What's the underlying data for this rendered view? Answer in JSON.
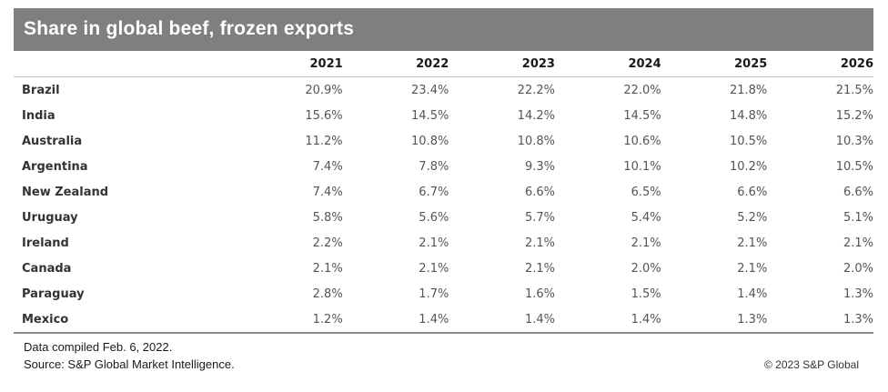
{
  "chart_data": {
    "type": "table",
    "title": "Share in global beef, frozen exports",
    "columns": [
      "2021",
      "2022",
      "2023",
      "2024",
      "2025",
      "2026"
    ],
    "rows": [
      {
        "label": "Brazil",
        "values": [
          "20.9%",
          "23.4%",
          "22.2%",
          "22.0%",
          "21.8%",
          "21.5%"
        ]
      },
      {
        "label": "India",
        "values": [
          "15.6%",
          "14.5%",
          "14.2%",
          "14.5%",
          "14.8%",
          "15.2%"
        ]
      },
      {
        "label": "Australia",
        "values": [
          "11.2%",
          "10.8%",
          "10.8%",
          "10.6%",
          "10.5%",
          "10.3%"
        ]
      },
      {
        "label": "Argentina",
        "values": [
          "7.4%",
          "7.8%",
          "9.3%",
          "10.1%",
          "10.2%",
          "10.5%"
        ]
      },
      {
        "label": "New Zealand",
        "values": [
          "7.4%",
          "6.7%",
          "6.6%",
          "6.5%",
          "6.6%",
          "6.6%"
        ]
      },
      {
        "label": "Uruguay",
        "values": [
          "5.8%",
          "5.6%",
          "5.7%",
          "5.4%",
          "5.2%",
          "5.1%"
        ]
      },
      {
        "label": "Ireland",
        "values": [
          "2.2%",
          "2.1%",
          "2.1%",
          "2.1%",
          "2.1%",
          "2.1%"
        ]
      },
      {
        "label": "Canada",
        "values": [
          "2.1%",
          "2.1%",
          "2.1%",
          "2.0%",
          "2.1%",
          "2.0%"
        ]
      },
      {
        "label": "Paraguay",
        "values": [
          "2.8%",
          "1.7%",
          "1.6%",
          "1.5%",
          "1.4%",
          "1.3%"
        ]
      },
      {
        "label": "Mexico",
        "values": [
          "1.2%",
          "1.4%",
          "1.4%",
          "1.4%",
          "1.3%",
          "1.3%"
        ]
      }
    ]
  },
  "footer": {
    "compiled": "Data compiled Feb. 6, 2022.",
    "source": "Source: S&P Global Market Intelligence.",
    "copyright": "© 2023 S&P Global"
  },
  "colors": {
    "banner": "#7f7f7f",
    "banner_text": "#ffffff"
  }
}
